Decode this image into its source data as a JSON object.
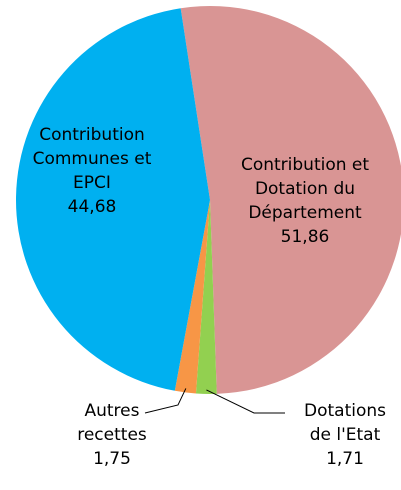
{
  "chart_data": {
    "type": "pie",
    "categories": [
      "Contribution et\nDotation du\nDépartement",
      "Dotations\nde l'Etat",
      "Autres\nrecettes",
      "Contribution\nCommunes et\nEPCI"
    ],
    "values": [
      51.86,
      1.71,
      1.75,
      44.68
    ],
    "value_labels": [
      "51,86",
      "1,71",
      "1,75",
      "44,68"
    ],
    "colors": [
      "#d99594",
      "#92d050",
      "#f79646",
      "#00b0f0"
    ]
  }
}
